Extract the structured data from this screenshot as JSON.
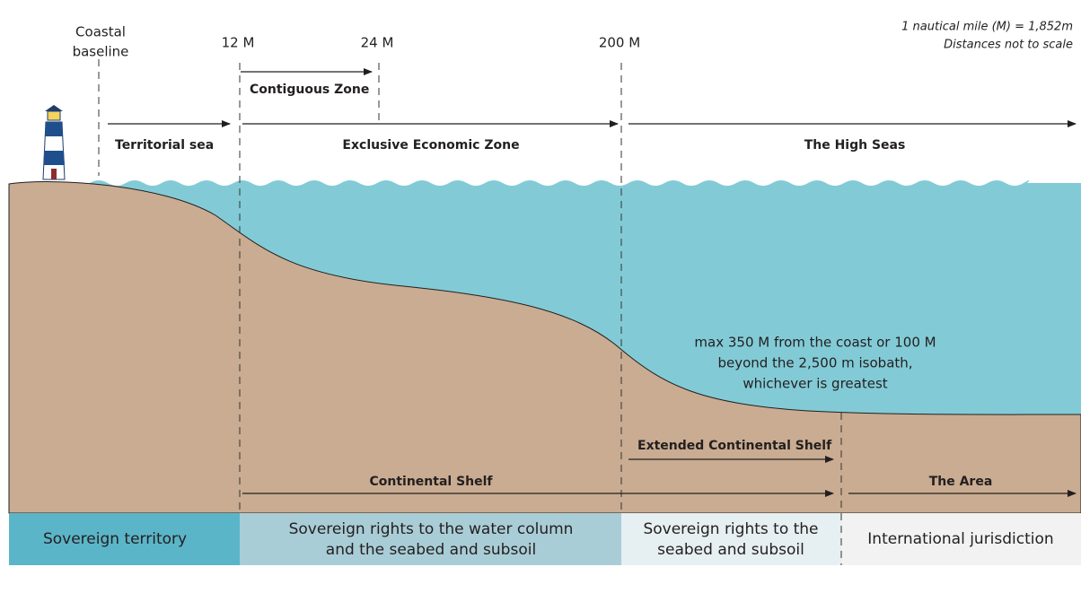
{
  "note": [
    "1 nautical mile (M) = 1,852m",
    "Distances not to scale"
  ],
  "markers": {
    "baseline": [
      "Coastal",
      "baseline"
    ],
    "m12": "12 M",
    "m24": "24 M",
    "m200": "200 M"
  },
  "water_zones": {
    "contiguous": "Contiguous Zone",
    "territorial": "Territorial sea",
    "eez": "Exclusive Economic Zone",
    "high_seas": "The High Seas"
  },
  "limit_note": [
    "max 350 M from the coast or 100 M",
    "beyond the 2,500 m isobath,",
    "whichever is greatest"
  ],
  "seabed_zones": {
    "extended": "Extended Continental Shelf",
    "shelf": "Continental Shelf",
    "area": "The Area"
  },
  "jurisdiction": [
    [
      "Sovereign territory"
    ],
    [
      "Sovereign rights to the water column",
      "and the seabed and subsoil"
    ],
    [
      "Sovereign rights to the",
      "seabed and subsoil"
    ],
    [
      "International jurisdiction"
    ]
  ]
}
